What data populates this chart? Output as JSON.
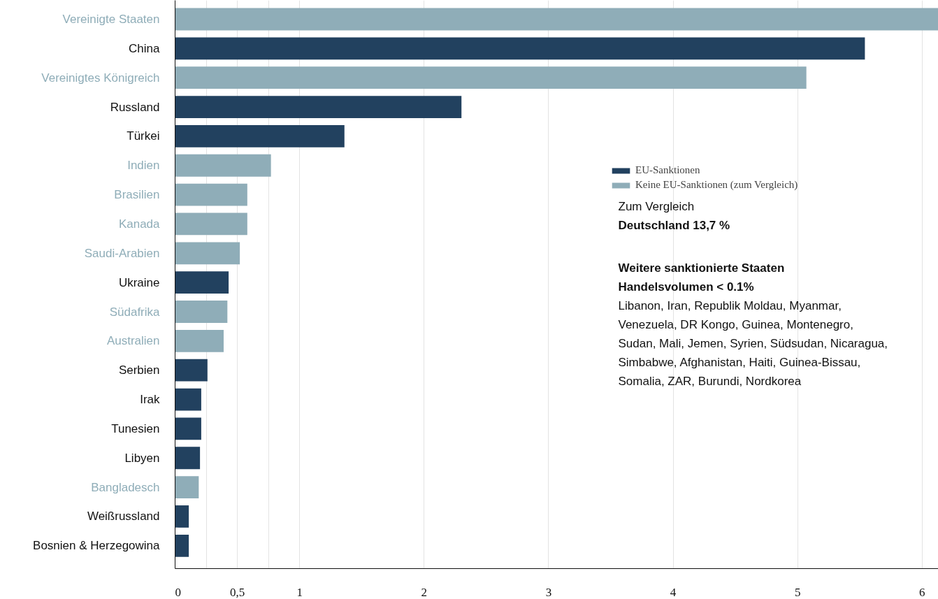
{
  "chart_data": {
    "type": "bar",
    "orientation": "horizontal",
    "categories": [
      "Vereinigte Staaten",
      "China",
      "Vereinigtes Königreich",
      "Russland",
      "Türkei",
      "Indien",
      "Brasilien",
      "Kanada",
      "Saudi-Arabien",
      "Ukraine",
      "Südafrika",
      "Australien",
      "Serbien",
      "Irak",
      "Tunesien",
      "Libyen",
      "Bangladesch",
      "Weißrussland",
      "Bosnien & Herzegowina"
    ],
    "series": [
      {
        "name": "EU-Sanktionen",
        "color": "#22415f",
        "values": [
          null,
          5.54,
          null,
          2.3,
          1.36,
          null,
          null,
          null,
          null,
          0.43,
          null,
          null,
          0.26,
          0.21,
          0.21,
          0.2,
          null,
          0.11,
          0.11
        ]
      },
      {
        "name": "Keine EU-Sanktionen (zum Vergleich)",
        "color": "#8fadb8",
        "values": [
          6.13,
          null,
          5.07,
          null,
          null,
          0.77,
          0.58,
          0.58,
          0.52,
          null,
          0.42,
          0.39,
          null,
          null,
          null,
          null,
          0.19,
          null,
          null
        ]
      }
    ],
    "xlim": [
      0,
      6.13
    ],
    "xticks": [
      0,
      {
        "value": 0.25,
        "label": null
      },
      {
        "value": 0.5,
        "label": "0,5"
      },
      {
        "value": 0.75,
        "label": null
      },
      1,
      2,
      3,
      4,
      5,
      6
    ],
    "grid": "x",
    "legend": "right",
    "annotations": [
      "Zum Vergleich",
      "Deutschland 13,7 %",
      "Weitere sanktionierte Staaten",
      "Handelsvolumen < 0.1%",
      "Libanon, Iran, Republik Moldau, Myanmar,",
      "Venezuela, DR Kongo, Guinea, Montenegro,",
      "Sudan, Mali, Jemen, Syrien, Südsudan, Nicaragua,",
      "Simbabwe, Afghanistan, Haiti, Guinea-Bissau,",
      "Somalia, ZAR, Burundi, Nordkorea"
    ]
  }
}
